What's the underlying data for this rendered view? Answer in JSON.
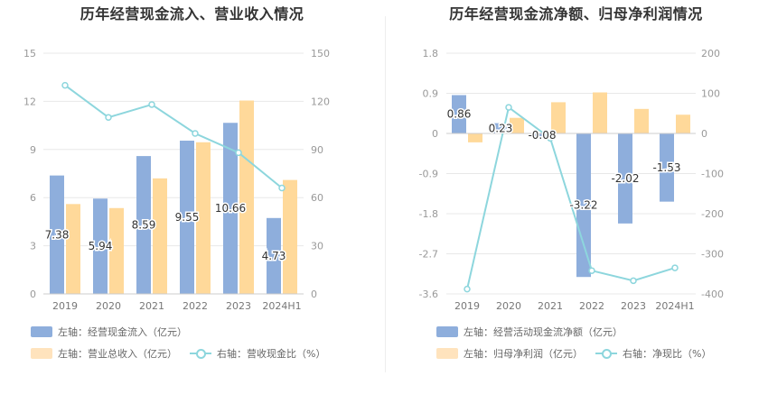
{
  "charts": {
    "left": {
      "title": "历年经营现金流入、营业收入情况",
      "legend": {
        "bar1": "左轴：经营现金流入（亿元）",
        "bar2": "左轴：营业总收入（亿元）",
        "line": "右轴：营收现金比（%）"
      }
    },
    "right": {
      "title": "历年经营现金流净额、归母净利润情况",
      "legend": {
        "bar1": "左轴：经营活动现金流净额（亿元）",
        "bar2": "左轴：归母净利润（亿元）",
        "line": "右轴：净现比（%）"
      }
    }
  },
  "colors": {
    "bar_blue": "#8eaedc",
    "bar_orange": "#ffd99a",
    "line": "#8dd6dd",
    "grid": "#e8e8e8",
    "axis_text": "#999999"
  },
  "chart_data": [
    {
      "type": "bar",
      "title": "历年经营现金流入、营业收入情况",
      "categories": [
        "2019",
        "2020",
        "2021",
        "2022",
        "2023",
        "2024H1"
      ],
      "left_ylim": [
        0,
        15
      ],
      "left_ticks": [
        "0",
        "3",
        "6",
        "9",
        "12",
        "15"
      ],
      "right_ylim": [
        0,
        150
      ],
      "right_ticks": [
        "0",
        "30",
        "60",
        "90",
        "120",
        "150"
      ],
      "series": [
        {
          "name": "左轴：经营现金流入（亿元）",
          "axis": "left",
          "kind": "bar",
          "values": [
            7.38,
            5.94,
            8.59,
            9.55,
            10.66,
            4.73
          ],
          "labels": [
            "7.38",
            "5.94",
            "8.59",
            "9.55",
            "10.66",
            "4.73"
          ]
        },
        {
          "name": "左轴：营业总收入（亿元）",
          "axis": "left",
          "kind": "bar",
          "values": [
            5.6,
            5.35,
            7.2,
            9.45,
            12.05,
            7.1
          ]
        },
        {
          "name": "右轴：营收现金比（%）",
          "axis": "right",
          "kind": "line",
          "values": [
            130,
            110,
            118,
            100,
            88,
            66
          ]
        }
      ],
      "grid": true,
      "legend_position": "bottom"
    },
    {
      "type": "bar",
      "title": "历年经营现金流净额、归母净利润情况",
      "categories": [
        "2019",
        "2020",
        "2021",
        "2022",
        "2023",
        "2024H1"
      ],
      "left_ylim": [
        -3.6,
        1.8
      ],
      "left_ticks": [
        "-3.6",
        "-2.7",
        "-1.8",
        "-0.9",
        "0",
        "0.9",
        "1.8"
      ],
      "right_ylim": [
        -400,
        200
      ],
      "right_ticks": [
        "-400",
        "-300",
        "-200",
        "-100",
        "0",
        "100",
        "200"
      ],
      "series": [
        {
          "name": "左轴：经营活动现金流净额（亿元）",
          "axis": "left",
          "kind": "bar",
          "values": [
            0.86,
            0.23,
            -0.08,
            -3.22,
            -2.02,
            -1.53
          ],
          "labels": [
            "0.86",
            "0.23",
            "-0.08",
            "-3.22",
            "-2.02",
            "-1.53"
          ]
        },
        {
          "name": "左轴：归母净利润（亿元）",
          "axis": "left",
          "kind": "bar",
          "values": [
            -0.2,
            0.35,
            0.7,
            0.92,
            0.55,
            0.42
          ]
        },
        {
          "name": "右轴：净现比（%）",
          "axis": "right",
          "kind": "line",
          "values": [
            -388,
            65,
            -12,
            -342,
            -367,
            -335
          ]
        }
      ],
      "grid": true,
      "legend_position": "bottom"
    }
  ]
}
